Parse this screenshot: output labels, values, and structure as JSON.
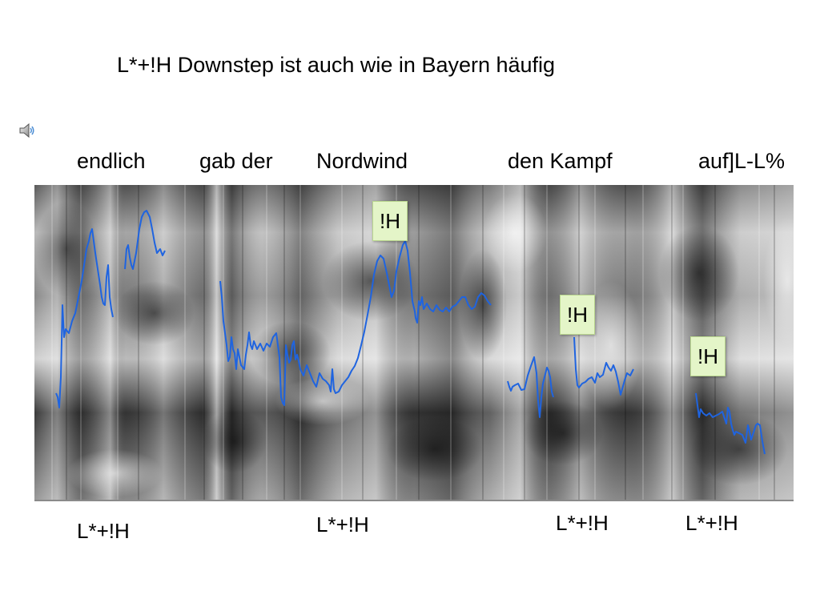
{
  "title": "L*+!H Downstep ist auch wie in Bayern häufig",
  "audio_icon": "speaker-icon",
  "words": [
    "endlich",
    "gab der",
    "Nordwind",
    "den Kampf",
    "auf]L-L%"
  ],
  "pitch_accent_boxes": [
    "!H",
    "!H",
    "!H"
  ],
  "tone_labels": [
    "L*+!H",
    "L*+!H",
    "L*+!H",
    "L*+!H"
  ],
  "colors": {
    "pitch_track": "#1f64e0",
    "box_fill": "#e4f5c8"
  }
}
